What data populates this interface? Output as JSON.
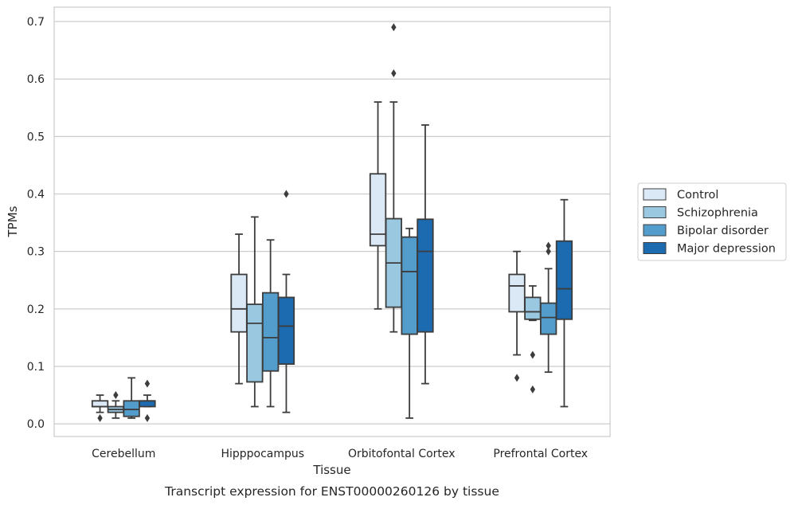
{
  "caption": "Transcript expression for ENST00000260126 by tissue",
  "chart_data": {
    "type": "box",
    "xlabel": "Tissue",
    "ylabel": "TPMs",
    "categories": [
      "Cerebellum",
      "Hipppocampus",
      "Orbitofontal Cortex",
      "Prefrontal Cortex"
    ],
    "ylim": [
      -0.022,
      0.725
    ],
    "yticks": [
      "0.0",
      "0.1",
      "0.2",
      "0.3",
      "0.4",
      "0.5",
      "0.6",
      "0.7"
    ],
    "grid": true,
    "legend_position": "right",
    "series": [
      {
        "name": "Control",
        "color": "#dbe9f6",
        "boxes": [
          {
            "whislo": 0.02,
            "q1": 0.03,
            "med": 0.03,
            "q3": 0.04,
            "whishi": 0.05,
            "fliers": [
              0.01
            ]
          },
          {
            "whislo": 0.07,
            "q1": 0.16,
            "med": 0.2,
            "q3": 0.26,
            "whishi": 0.33,
            "fliers": []
          },
          {
            "whislo": 0.2,
            "q1": 0.31,
            "med": 0.33,
            "q3": 0.435,
            "whishi": 0.56,
            "fliers": []
          },
          {
            "whislo": 0.12,
            "q1": 0.195,
            "med": 0.24,
            "q3": 0.26,
            "whishi": 0.3,
            "fliers": [
              0.08
            ]
          }
        ]
      },
      {
        "name": "Schizophrenia",
        "color": "#9ac8e0",
        "boxes": [
          {
            "whislo": 0.01,
            "q1": 0.02,
            "med": 0.025,
            "q3": 0.03,
            "whishi": 0.04,
            "fliers": [
              0.05
            ]
          },
          {
            "whislo": 0.03,
            "q1": 0.073,
            "med": 0.175,
            "q3": 0.208,
            "whishi": 0.36,
            "fliers": []
          },
          {
            "whislo": 0.16,
            "q1": 0.203,
            "med": 0.28,
            "q3": 0.357,
            "whishi": 0.56,
            "fliers": [
              0.61,
              0.69
            ]
          },
          {
            "whislo": 0.18,
            "q1": 0.182,
            "med": 0.195,
            "q3": 0.22,
            "whishi": 0.24,
            "fliers": [
              0.12,
              0.06
            ]
          }
        ]
      },
      {
        "name": "Bipolar disorder",
        "color": "#529dcc",
        "boxes": [
          {
            "whislo": 0.01,
            "q1": 0.013,
            "med": 0.025,
            "q3": 0.04,
            "whishi": 0.08,
            "fliers": []
          },
          {
            "whislo": 0.03,
            "q1": 0.092,
            "med": 0.15,
            "q3": 0.228,
            "whishi": 0.32,
            "fliers": []
          },
          {
            "whislo": 0.01,
            "q1": 0.156,
            "med": 0.265,
            "q3": 0.325,
            "whishi": 0.34,
            "fliers": []
          },
          {
            "whislo": 0.09,
            "q1": 0.156,
            "med": 0.185,
            "q3": 0.21,
            "whishi": 0.27,
            "fliers": [
              0.3,
              0.31
            ]
          }
        ]
      },
      {
        "name": "Major depression",
        "color": "#1c6aaf",
        "boxes": [
          {
            "whislo": 0.03,
            "q1": 0.03,
            "med": 0.04,
            "q3": 0.04,
            "whishi": 0.05,
            "fliers": [
              0.01,
              0.07
            ]
          },
          {
            "whislo": 0.02,
            "q1": 0.104,
            "med": 0.17,
            "q3": 0.22,
            "whishi": 0.26,
            "fliers": [
              0.4
            ]
          },
          {
            "whislo": 0.07,
            "q1": 0.16,
            "med": 0.3,
            "q3": 0.356,
            "whishi": 0.52,
            "fliers": []
          },
          {
            "whislo": 0.03,
            "q1": 0.182,
            "med": 0.235,
            "q3": 0.318,
            "whishi": 0.39,
            "fliers": []
          }
        ]
      }
    ]
  }
}
